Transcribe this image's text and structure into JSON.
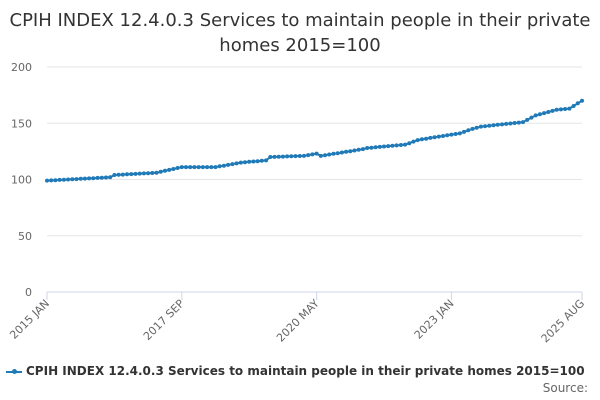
{
  "chart_data": {
    "type": "line",
    "title": "CPIH INDEX 12.4.0.3 Services to maintain people in their private homes 2015=100",
    "xlabel": "",
    "ylabel": "",
    "ylim": [
      0,
      200
    ],
    "yticks": [
      0,
      50,
      100,
      150,
      200
    ],
    "x_tick_labels": [
      "2015 JAN",
      "2017 SEP",
      "2020 MAY",
      "2023 JAN",
      "2025 AUG"
    ],
    "x_tick_indices": [
      0,
      32,
      64,
      96,
      127
    ],
    "legend": "bottom-left",
    "source": "Source:",
    "series": [
      {
        "name": "CPIH INDEX 12.4.0.3 Services to maintain people in their private homes 2015=100",
        "color": "#1f7ab7",
        "knots": [
          [
            0,
            99
          ],
          [
            15,
            102
          ],
          [
            16,
            104
          ],
          [
            26,
            106
          ],
          [
            32,
            111
          ],
          [
            40,
            111
          ],
          [
            46,
            115
          ],
          [
            52,
            117
          ],
          [
            53,
            120
          ],
          [
            61,
            121
          ],
          [
            64,
            123
          ],
          [
            65,
            121
          ],
          [
            75,
            127
          ],
          [
            76,
            128
          ],
          [
            85,
            131
          ],
          [
            88,
            135
          ],
          [
            91,
            137
          ],
          [
            98,
            141
          ],
          [
            101,
            145
          ],
          [
            103,
            147
          ],
          [
            113,
            151
          ],
          [
            116,
            157
          ],
          [
            121,
            162
          ],
          [
            124,
            163
          ],
          [
            127,
            170
          ]
        ]
      }
    ]
  }
}
